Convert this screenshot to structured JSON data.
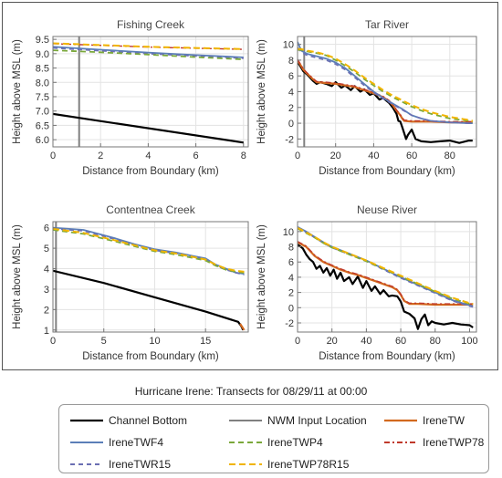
{
  "caption": "Hurricane Irene: Transects for 08/29/11 at 00:00",
  "legend": [
    {
      "name": "Channel Bottom",
      "color": "#000000",
      "dash": "",
      "width": 2.2
    },
    {
      "name": "NWM Input Location",
      "color": "#808080",
      "dash": "",
      "width": 2
    },
    {
      "name": "IreneTW",
      "color": "#d2691e",
      "dash": "",
      "width": 2.2
    },
    {
      "name": "IreneTWF4",
      "color": "#5b7fb8",
      "dash": "",
      "width": 1.8
    },
    {
      "name": "IreneTWP4",
      "color": "#7aa83a",
      "dash": "6,4",
      "width": 1.8
    },
    {
      "name": "IreneTWP78",
      "color": "#c0392b",
      "dash": "6,3,2,3",
      "width": 1.4
    },
    {
      "name": "IreneTWR15",
      "color": "#6b6fb3",
      "dash": "5,4",
      "width": 1.6
    },
    {
      "name": "IreneTWP78R15",
      "color": "#f0b400",
      "dash": "7,4",
      "width": 2
    }
  ],
  "chart_data": [
    {
      "type": "line",
      "title": "Fishing Creek",
      "xlabel": "Distance from Boundary (km)",
      "ylabel": "Height above MSL (m)",
      "xlim": [
        0,
        8.2
      ],
      "ylim": [
        5.75,
        9.6
      ],
      "xticks": [
        0,
        2,
        4,
        6,
        8
      ],
      "yticks": [
        6.0,
        6.5,
        7.0,
        7.5,
        8.0,
        8.5,
        9.0,
        9.5
      ],
      "ytick_decimals": 1,
      "grid": true,
      "nwm_input_x": 1.1,
      "series": [
        {
          "name": "Channel Bottom",
          "x": [
            0,
            8
          ],
          "y": [
            6.9,
            5.9
          ]
        },
        {
          "name": "IreneTWF4",
          "x": [
            0,
            2,
            4,
            6,
            8
          ],
          "y": [
            9.24,
            9.14,
            9.04,
            8.95,
            8.87
          ]
        },
        {
          "name": "IreneTWR15",
          "x": [
            0,
            2,
            4,
            6,
            8
          ],
          "y": [
            9.2,
            9.1,
            9.0,
            8.92,
            8.84
          ]
        },
        {
          "name": "IreneTWP4",
          "x": [
            0,
            2,
            4,
            6,
            8
          ],
          "y": [
            9.12,
            9.05,
            8.97,
            8.88,
            8.8
          ]
        },
        {
          "name": "IreneTWP78",
          "x": [
            0,
            2,
            4,
            6,
            8
          ],
          "y": [
            9.35,
            9.29,
            9.23,
            9.19,
            9.15
          ]
        },
        {
          "name": "IreneTWP78R15",
          "x": [
            0,
            2,
            4,
            6,
            8
          ],
          "y": [
            9.36,
            9.3,
            9.24,
            9.2,
            9.16
          ]
        }
      ]
    },
    {
      "type": "line",
      "title": "Tar River",
      "xlabel": "Distance from Boundary (km)",
      "ylabel": "Height above MSL (m)",
      "xlim": [
        0,
        94
      ],
      "ylim": [
        -3,
        11
      ],
      "xticks": [
        0,
        20,
        40,
        60,
        80
      ],
      "yticks": [
        -2,
        0,
        2,
        4,
        6,
        8,
        10
      ],
      "ytick_decimals": 0,
      "grid": true,
      "nwm_input_x": 3.5,
      "series": [
        {
          "name": "Channel Bottom",
          "x": [
            0,
            3,
            5,
            8,
            10,
            12,
            15,
            18,
            20,
            23,
            25,
            28,
            30,
            33,
            35,
            38,
            40,
            43,
            45,
            48,
            50,
            52,
            53,
            54,
            55,
            57,
            58,
            60,
            62,
            65,
            70,
            75,
            80,
            85,
            90,
            92
          ],
          "y": [
            7.8,
            6.6,
            6.2,
            5.4,
            5.0,
            5.2,
            5.0,
            4.7,
            5.2,
            4.5,
            4.8,
            4.2,
            4.7,
            4.0,
            4.3,
            3.6,
            3.8,
            3.0,
            3.2,
            2.6,
            2.0,
            1.2,
            0.3,
            0.2,
            -0.5,
            -2.0,
            -1.5,
            -0.8,
            -2.0,
            -2.3,
            -2.4,
            -2.3,
            -2.2,
            -2.5,
            -2.2,
            -2.2
          ]
        },
        {
          "name": "IreneTW",
          "x": [
            0,
            3,
            5,
            8,
            10,
            15,
            20,
            25,
            30,
            35,
            40,
            45,
            48,
            50,
            52,
            54,
            55,
            56,
            60,
            70,
            80,
            92
          ],
          "y": [
            8.0,
            6.8,
            6.3,
            5.6,
            5.2,
            5.1,
            5.0,
            4.8,
            4.6,
            4.2,
            3.8,
            3.3,
            2.8,
            2.3,
            1.6,
            1.0,
            0.6,
            0.3,
            0.2,
            0.2,
            0.1,
            0.1
          ]
        },
        {
          "name": "IreneTWP78",
          "x": [
            0,
            3,
            5,
            8,
            10,
            15,
            20,
            25,
            30,
            35,
            40,
            45,
            48,
            50,
            52,
            54,
            55,
            56,
            60,
            70,
            80,
            92
          ],
          "y": [
            8.1,
            6.9,
            6.4,
            5.7,
            5.3,
            5.2,
            5.1,
            4.9,
            4.7,
            4.3,
            3.9,
            3.4,
            2.9,
            2.4,
            1.7,
            1.1,
            0.7,
            0.4,
            0.3,
            0.3,
            0.2,
            0.2
          ]
        },
        {
          "name": "IreneTWF4",
          "x": [
            0,
            2,
            5,
            10,
            15,
            20,
            25,
            30,
            35,
            40,
            45,
            50,
            55,
            60,
            65,
            70,
            80,
            90,
            92
          ],
          "y": [
            10.3,
            9.2,
            8.8,
            8.5,
            8.2,
            7.7,
            7.0,
            6.0,
            5.0,
            4.0,
            3.2,
            2.5,
            1.8,
            1.0,
            0.6,
            0.3,
            0.1,
            0.0,
            0.0
          ]
        },
        {
          "name": "IreneTWR15",
          "x": [
            0,
            2,
            5,
            10,
            15,
            20,
            25,
            30,
            35,
            40,
            45,
            50,
            55,
            60,
            65,
            70,
            80,
            90,
            92
          ],
          "y": [
            9.6,
            9.0,
            8.6,
            8.3,
            8.0,
            7.5,
            6.8,
            5.8,
            4.8,
            3.9,
            3.1,
            2.4,
            1.7,
            1.0,
            0.6,
            0.3,
            0.1,
            0.0,
            0.0
          ]
        },
        {
          "name": "IreneTWP4",
          "x": [
            0,
            2,
            5,
            10,
            15,
            20,
            25,
            30,
            35,
            40,
            45,
            50,
            55,
            60,
            65,
            70,
            80,
            90,
            92
          ],
          "y": [
            9.3,
            9.3,
            9.1,
            8.9,
            8.6,
            8.0,
            7.3,
            6.5,
            5.6,
            4.8,
            4.0,
            3.3,
            2.7,
            2.1,
            1.6,
            1.2,
            0.6,
            0.3,
            0.2
          ]
        },
        {
          "name": "IreneTWP78R15",
          "x": [
            0,
            2,
            5,
            10,
            15,
            20,
            25,
            30,
            35,
            40,
            45,
            50,
            55,
            60,
            65,
            70,
            80,
            90,
            92
          ],
          "y": [
            9.4,
            9.4,
            9.2,
            9.0,
            8.7,
            8.2,
            7.5,
            6.7,
            5.8,
            5.0,
            4.2,
            3.5,
            2.9,
            2.3,
            1.8,
            1.4,
            0.8,
            0.4,
            0.3
          ]
        }
      ]
    },
    {
      "type": "line",
      "title": "Contentnea Creek",
      "xlabel": "Distance from Boundary (km)",
      "ylabel": "Height above MSL (m)",
      "xlim": [
        0,
        19.2
      ],
      "ylim": [
        0.9,
        6.3
      ],
      "xticks": [
        0,
        5,
        10,
        15
      ],
      "yticks": [
        1,
        2,
        3,
        4,
        5,
        6
      ],
      "ytick_decimals": 0,
      "grid": true,
      "nwm_input_x": 0.3,
      "series": [
        {
          "name": "Channel Bottom",
          "x": [
            0,
            5,
            10,
            15,
            18.2,
            18.5,
            18.7
          ],
          "y": [
            3.9,
            3.3,
            2.6,
            1.9,
            1.4,
            1.2,
            1.0
          ]
        },
        {
          "name": "IreneTW",
          "x": [
            18.4,
            18.6,
            18.8
          ],
          "y": [
            1.3,
            1.15,
            1.0
          ]
        },
        {
          "name": "IreneTWF4",
          "x": [
            0,
            3,
            6,
            8,
            10,
            12,
            14,
            15,
            16,
            17,
            18,
            18.8
          ],
          "y": [
            6.0,
            5.9,
            5.5,
            5.2,
            4.95,
            4.8,
            4.6,
            4.5,
            4.2,
            4.0,
            3.8,
            3.75
          ]
        },
        {
          "name": "IreneTWR15",
          "x": [
            0,
            3,
            6,
            8,
            10,
            12,
            14,
            15,
            16,
            17,
            18,
            18.8
          ],
          "y": [
            5.95,
            5.85,
            5.45,
            5.15,
            4.9,
            4.75,
            4.55,
            4.45,
            4.15,
            3.95,
            3.8,
            3.7
          ]
        },
        {
          "name": "IreneTWP4",
          "x": [
            0,
            3,
            6,
            8,
            10,
            12,
            14,
            15,
            16,
            17,
            18,
            18.8
          ],
          "y": [
            5.9,
            5.7,
            5.35,
            5.1,
            4.85,
            4.7,
            4.5,
            4.4,
            4.15,
            3.95,
            3.85,
            3.8
          ]
        },
        {
          "name": "IreneTWP78R15",
          "x": [
            0,
            3,
            6,
            8,
            10,
            12,
            14,
            15,
            16,
            17,
            18,
            18.8
          ],
          "y": [
            5.95,
            5.75,
            5.4,
            5.15,
            4.9,
            4.75,
            4.55,
            4.45,
            4.2,
            4.0,
            3.9,
            3.85
          ]
        }
      ]
    },
    {
      "type": "line",
      "title": "Neuse River",
      "xlabel": "Distance from Boundary (km)",
      "ylabel": "Height above MSL (m)",
      "xlim": [
        0,
        104
      ],
      "ylim": [
        -3.2,
        11.3
      ],
      "xticks": [
        0,
        20,
        40,
        60,
        80,
        100
      ],
      "yticks": [
        -2,
        0,
        2,
        4,
        6,
        8,
        10
      ],
      "ytick_decimals": 0,
      "grid": true,
      "series": [
        {
          "name": "Channel Bottom",
          "x": [
            0,
            3,
            5,
            7,
            9,
            11,
            13,
            15,
            17,
            19,
            21,
            23,
            25,
            27,
            30,
            32,
            35,
            38,
            40,
            43,
            45,
            48,
            50,
            53,
            55,
            58,
            60,
            62,
            65,
            68,
            70,
            72,
            74,
            76,
            78,
            80,
            85,
            90,
            95,
            100,
            102
          ],
          "y": [
            8.3,
            7.8,
            7.0,
            6.4,
            6.0,
            5.1,
            5.5,
            4.6,
            5.2,
            4.2,
            5.0,
            3.8,
            4.6,
            3.5,
            4.0,
            3.1,
            4.1,
            2.6,
            3.5,
            2.2,
            2.8,
            1.8,
            2.3,
            1.5,
            1.6,
            1.5,
            0.8,
            -0.5,
            -0.8,
            -1.4,
            -2.8,
            -1.5,
            -0.9,
            -2.3,
            -1.8,
            -2.0,
            -2.2,
            -2.0,
            -2.2,
            -2.3,
            -2.6
          ]
        },
        {
          "name": "IreneTW",
          "x": [
            0,
            5,
            10,
            15,
            20,
            25,
            30,
            35,
            40,
            45,
            50,
            55,
            58,
            60,
            62,
            65,
            70,
            80,
            90,
            100,
            102
          ],
          "y": [
            8.6,
            8.0,
            6.8,
            6.0,
            5.5,
            5.0,
            4.6,
            4.3,
            3.9,
            3.5,
            3.1,
            2.7,
            2.3,
            1.7,
            0.9,
            0.5,
            0.5,
            0.4,
            0.4,
            0.4,
            0.4
          ]
        },
        {
          "name": "IreneTWP78",
          "x": [
            0,
            5,
            10,
            15,
            20,
            25,
            30,
            35,
            40,
            45,
            50,
            55,
            58,
            60,
            62,
            65,
            70,
            80,
            90,
            100,
            102
          ],
          "y": [
            8.7,
            8.1,
            6.9,
            6.1,
            5.6,
            5.1,
            4.7,
            4.4,
            4.0,
            3.6,
            3.2,
            2.8,
            2.4,
            1.8,
            1.0,
            0.6,
            0.6,
            0.5,
            0.5,
            0.5,
            0.5
          ]
        },
        {
          "name": "IreneTWF4",
          "x": [
            0,
            5,
            10,
            15,
            20,
            30,
            40,
            50,
            60,
            70,
            80,
            90,
            100,
            102
          ],
          "y": [
            10.6,
            10.0,
            9.3,
            8.6,
            8.0,
            7.1,
            6.2,
            5.1,
            4.0,
            3.0,
            2.0,
            1.0,
            0.3,
            0.2
          ]
        },
        {
          "name": "IreneTWR15",
          "x": [
            0,
            5,
            10,
            15,
            20,
            30,
            40,
            50,
            60,
            70,
            80,
            90,
            100,
            102
          ],
          "y": [
            10.5,
            9.9,
            9.2,
            8.5,
            7.9,
            7.0,
            6.1,
            5.0,
            3.9,
            2.9,
            1.9,
            0.9,
            0.2,
            0.1
          ]
        },
        {
          "name": "IreneTWP4",
          "x": [
            0,
            5,
            10,
            15,
            20,
            30,
            40,
            50,
            60,
            70,
            80,
            90,
            100,
            102
          ],
          "y": [
            10.4,
            9.8,
            9.2,
            8.5,
            7.9,
            7.0,
            6.1,
            5.1,
            4.1,
            3.1,
            2.1,
            1.2,
            0.5,
            0.4
          ]
        },
        {
          "name": "IreneTWP78R15",
          "x": [
            0,
            5,
            10,
            15,
            20,
            30,
            40,
            50,
            60,
            70,
            80,
            90,
            100,
            102
          ],
          "y": [
            10.5,
            9.9,
            9.3,
            8.6,
            8.0,
            7.1,
            6.2,
            5.2,
            4.2,
            3.2,
            2.2,
            1.3,
            0.6,
            0.5
          ]
        }
      ]
    }
  ]
}
